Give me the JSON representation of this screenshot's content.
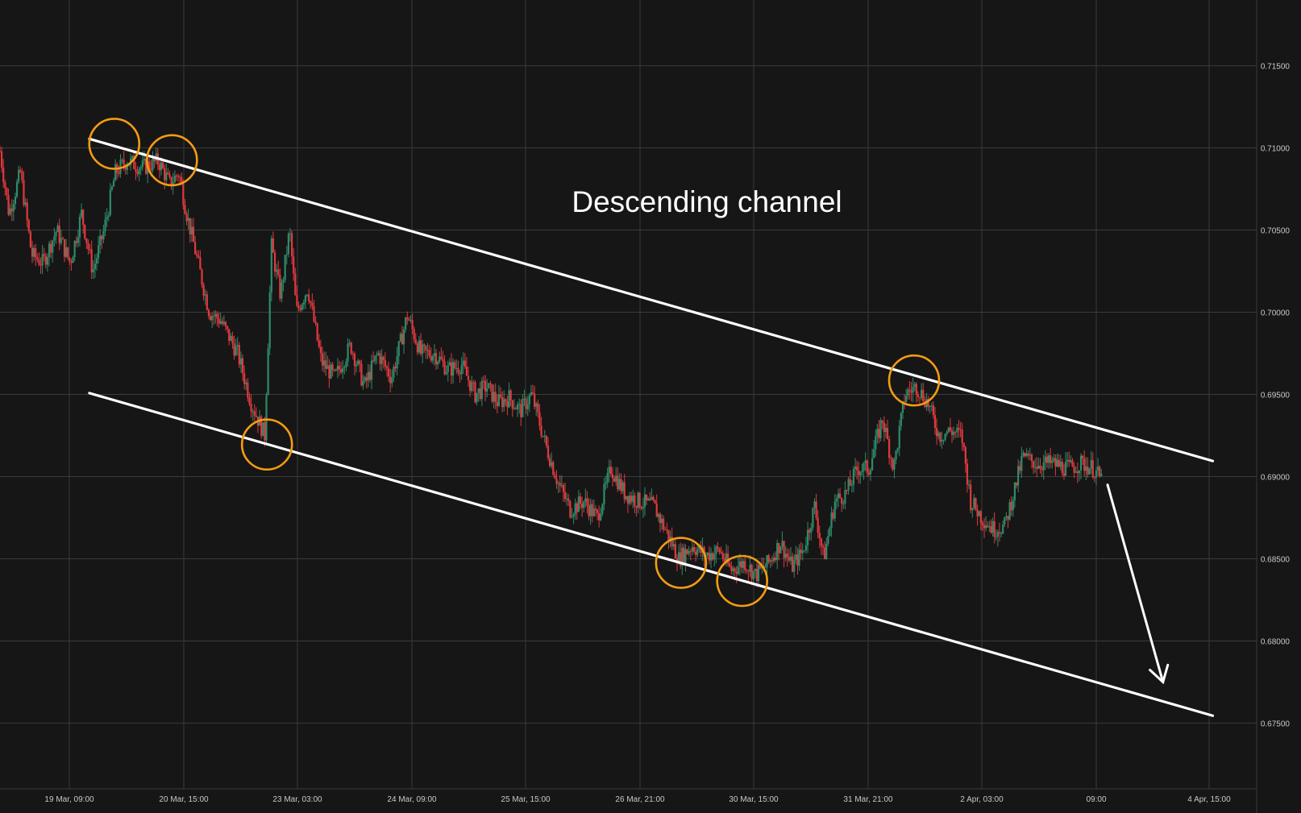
{
  "chart_data": {
    "type": "candlestick",
    "title": "Descending channel",
    "xlabel": "",
    "ylabel": "",
    "y_axis_side": "right",
    "ylim": [
      0.671,
      0.719
    ],
    "y_ticks": [
      "0.67500",
      "0.68000",
      "0.68500",
      "0.69000",
      "0.69500",
      "0.70000",
      "0.70500",
      "0.71000",
      "0.71500"
    ],
    "x_tick_labels": [
      "19 Mar, 09:00",
      "20 Mar, 15:00",
      "23 Mar, 03:00",
      "24 Mar, 09:00",
      "25 Mar, 15:00",
      "26 Mar, 21:00",
      "30 Mar, 15:00",
      "31 Mar, 21:00",
      "2 Apr, 03:00",
      "09:00",
      "4 Apr, 15:00"
    ],
    "x_range_bars": [
      0,
      1150
    ],
    "grid": true,
    "colors": {
      "up": "#2e8b6a",
      "down": "#e0393e",
      "background": "#161616",
      "grid": "#3b3b3b",
      "annotation": "#f39c12",
      "line": "#ffffff"
    },
    "price_path": [
      [
        0,
        0.7098
      ],
      [
        8,
        0.706
      ],
      [
        18,
        0.7085
      ],
      [
        28,
        0.7035
      ],
      [
        38,
        0.703
      ],
      [
        50,
        0.705
      ],
      [
        62,
        0.703
      ],
      [
        72,
        0.706
      ],
      [
        82,
        0.7025
      ],
      [
        92,
        0.705
      ],
      [
        102,
        0.7085
      ],
      [
        112,
        0.7092
      ],
      [
        126,
        0.7088
      ],
      [
        140,
        0.7092
      ],
      [
        150,
        0.7078
      ],
      [
        158,
        0.7085
      ],
      [
        165,
        0.706
      ],
      [
        175,
        0.703
      ],
      [
        185,
        0.7
      ],
      [
        195,
        0.6995
      ],
      [
        210,
        0.6975
      ],
      [
        222,
        0.6945
      ],
      [
        234,
        0.6925
      ],
      [
        240,
        0.704
      ],
      [
        248,
        0.701
      ],
      [
        256,
        0.705
      ],
      [
        262,
        0.7
      ],
      [
        272,
        0.7015
      ],
      [
        284,
        0.697
      ],
      [
        296,
        0.696
      ],
      [
        310,
        0.698
      ],
      [
        322,
        0.6955
      ],
      [
        334,
        0.6975
      ],
      [
        346,
        0.696
      ],
      [
        360,
        0.6998
      ],
      [
        372,
        0.6975
      ],
      [
        384,
        0.6975
      ],
      [
        396,
        0.6965
      ],
      [
        408,
        0.6968
      ],
      [
        420,
        0.695
      ],
      [
        430,
        0.6955
      ],
      [
        440,
        0.6945
      ],
      [
        450,
        0.6948
      ],
      [
        460,
        0.694
      ],
      [
        470,
        0.695
      ],
      [
        482,
        0.692
      ],
      [
        494,
        0.6895
      ],
      [
        504,
        0.688
      ],
      [
        516,
        0.6885
      ],
      [
        528,
        0.6875
      ],
      [
        540,
        0.6905
      ],
      [
        552,
        0.689
      ],
      [
        564,
        0.6885
      ],
      [
        578,
        0.6882
      ],
      [
        590,
        0.6865
      ],
      [
        600,
        0.685
      ],
      [
        612,
        0.6858
      ],
      [
        624,
        0.6852
      ],
      [
        636,
        0.6855
      ],
      [
        646,
        0.6843
      ],
      [
        658,
        0.6848
      ],
      [
        668,
        0.684
      ],
      [
        680,
        0.6848
      ],
      [
        690,
        0.686
      ],
      [
        700,
        0.6845
      ],
      [
        710,
        0.6855
      ],
      [
        720,
        0.6882
      ],
      [
        728,
        0.685
      ],
      [
        738,
        0.6885
      ],
      [
        748,
        0.689
      ],
      [
        758,
        0.6905
      ],
      [
        768,
        0.6905
      ],
      [
        780,
        0.6935
      ],
      [
        790,
        0.6905
      ],
      [
        800,
        0.695
      ],
      [
        810,
        0.6955
      ],
      [
        820,
        0.6945
      ],
      [
        830,
        0.6925
      ],
      [
        840,
        0.6928
      ],
      [
        850,
        0.6925
      ],
      [
        858,
        0.6885
      ],
      [
        868,
        0.6875
      ],
      [
        878,
        0.6868
      ],
      [
        888,
        0.687
      ],
      [
        896,
        0.689
      ],
      [
        904,
        0.6912
      ],
      [
        916,
        0.6908
      ],
      [
        930,
        0.6908
      ],
      [
        944,
        0.6905
      ],
      [
        956,
        0.6908
      ],
      [
        966,
        0.6905
      ],
      [
        974,
        0.6898
      ]
    ],
    "channel_upper": {
      "from": {
        "bar": 79,
        "price": 0.71055
      },
      "to": {
        "bar": 1072,
        "price": 0.69095
      }
    },
    "channel_lower": {
      "from": {
        "bar": 79,
        "price": 0.69508
      },
      "to": {
        "bar": 1072,
        "price": 0.67545
      }
    },
    "touch_points": [
      {
        "bar": 101,
        "price": 0.71025
      },
      {
        "bar": 152,
        "price": 0.70925
      },
      {
        "bar": 236,
        "price": 0.69195
      },
      {
        "bar": 602,
        "price": 0.68475
      },
      {
        "bar": 656,
        "price": 0.68365
      },
      {
        "bar": 808,
        "price": 0.69585
      }
    ],
    "projection_arrow": {
      "from": {
        "bar": 979,
        "price": 0.6895
      },
      "to": {
        "bar": 1028,
        "price": 0.6775
      }
    }
  }
}
